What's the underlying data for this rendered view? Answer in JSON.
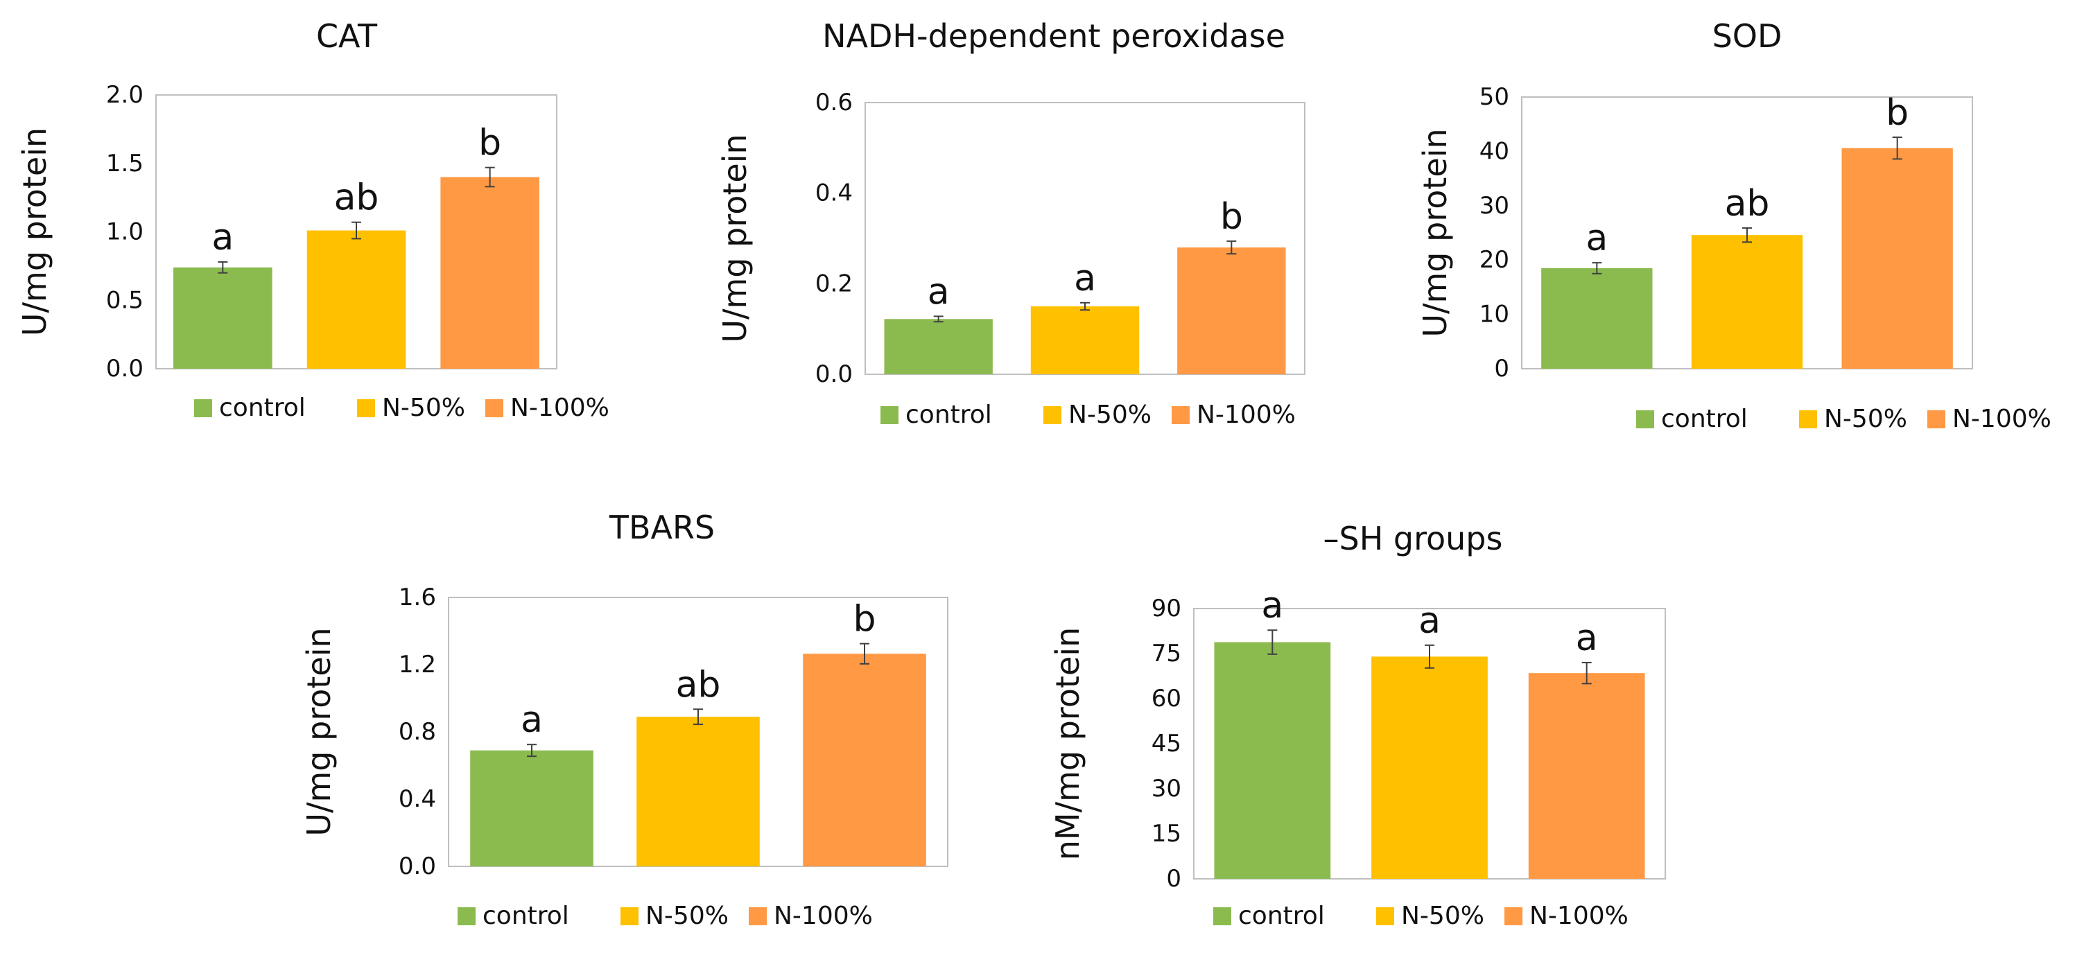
{
  "legend": [
    "control",
    "N-50%",
    "N-100%"
  ],
  "colors": {
    "control": "#8BBB4F",
    "N-50%": "#FFC000",
    "N-100%": "#FF9944",
    "frame": "#BFBFBF",
    "errorbar": "#404040"
  },
  "chart_data": [
    {
      "type": "bar",
      "title": "CAT",
      "ylabel": "U/mg protein",
      "categories": [
        "control",
        "N-50%",
        "N-100%"
      ],
      "values": [
        0.74,
        1.01,
        1.4
      ],
      "errors": [
        0.04,
        0.06,
        0.07
      ],
      "letters": [
        "a",
        "ab",
        "b"
      ],
      "ylim": [
        0,
        2.0
      ],
      "yticks": [
        0,
        0.5,
        1.0,
        1.5,
        2.0
      ],
      "ytick_labels": [
        "0.0",
        "0.5",
        "1.0",
        "1.5",
        "2.0"
      ],
      "grid": false,
      "legend_position": "bottom"
    },
    {
      "type": "bar",
      "title": "NADH-dependent peroxidase",
      "ylabel": "U/mg protein",
      "categories": [
        "control",
        "N-50%",
        "N-100%"
      ],
      "values": [
        0.122,
        0.15,
        0.28
      ],
      "errors": [
        0.006,
        0.008,
        0.014
      ],
      "letters": [
        "a",
        "a",
        "b"
      ],
      "ylim": [
        0,
        0.6
      ],
      "yticks": [
        0,
        0.2,
        0.4,
        0.6
      ],
      "ytick_labels": [
        "0.0",
        "0.2",
        "0.4",
        "0.6"
      ],
      "grid": false,
      "legend_position": "bottom"
    },
    {
      "type": "bar",
      "title": "SOD",
      "ylabel": "U/mg protein",
      "categories": [
        "control",
        "N-50%",
        "N-100%"
      ],
      "values": [
        18.5,
        24.6,
        40.6
      ],
      "errors": [
        1.0,
        1.3,
        2.0
      ],
      "letters": [
        "a",
        "ab",
        "b"
      ],
      "ylim": [
        0,
        50
      ],
      "yticks": [
        0,
        10,
        20,
        30,
        40,
        50
      ],
      "ytick_labels": [
        "0",
        "10",
        "20",
        "30",
        "40",
        "50"
      ],
      "grid": false,
      "legend_position": "bottom"
    },
    {
      "type": "bar",
      "title": "TBARS",
      "ylabel": "U/mg protein",
      "categories": [
        "control",
        "N-50%",
        "N-100%"
      ],
      "values": [
        0.69,
        0.89,
        1.265
      ],
      "errors": [
        0.035,
        0.045,
        0.06
      ],
      "letters": [
        "a",
        "ab",
        "b"
      ],
      "ylim": [
        0,
        1.6
      ],
      "yticks": [
        0,
        0.4,
        0.8,
        1.2,
        1.6
      ],
      "ytick_labels": [
        "0.0",
        "0.4",
        "0.8",
        "1.2",
        "1.6"
      ],
      "grid": false,
      "legend_position": "bottom"
    },
    {
      "type": "bar",
      "title": "–SH groups",
      "ylabel": "nM/mg protein",
      "categories": [
        "control",
        "N-50%",
        "N-100%"
      ],
      "values": [
        78.8,
        74.0,
        68.5
      ],
      "errors": [
        4.0,
        3.8,
        3.5
      ],
      "letters": [
        "a",
        "a",
        "a"
      ],
      "ylim": [
        0,
        90
      ],
      "yticks": [
        0,
        15,
        30,
        45,
        60,
        75,
        90
      ],
      "ytick_labels": [
        "0",
        "15",
        "30",
        "45",
        "60",
        "75",
        "90"
      ],
      "grid": false,
      "legend_position": "bottom"
    }
  ]
}
